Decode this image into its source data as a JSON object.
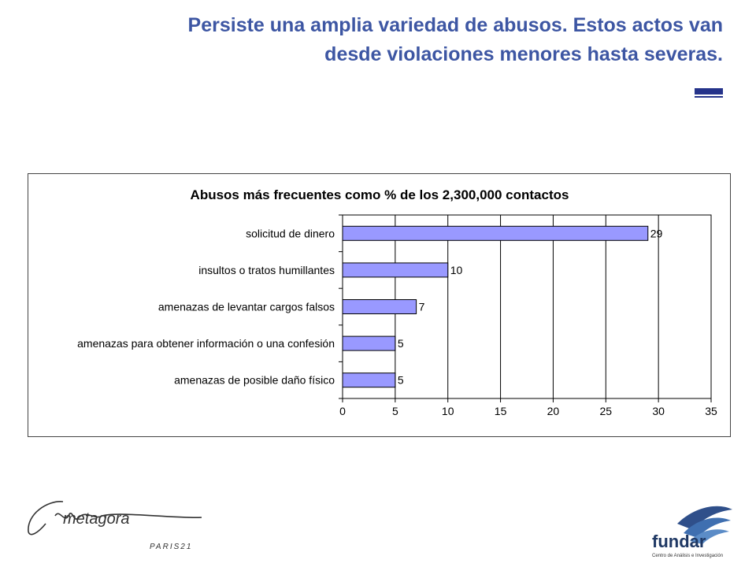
{
  "slide": {
    "title_line1": "Persiste una amplia variedad de abusos. Estos actos van",
    "title_line2": "desde violaciones menores hasta severas.",
    "title_color": "#3d56a3",
    "rule_color": "#25338a"
  },
  "chart_data": {
    "type": "bar",
    "orientation": "horizontal",
    "title": "Abusos más frecuentes como % de los 2,300,000 contactos",
    "categories": [
      "solicitud de dinero",
      "insultos o tratos humillantes",
      "amenazas de levantar cargos falsos",
      "amenazas para obtener información o una confesión",
      "amenazas de posible daño físico"
    ],
    "values": [
      29,
      10,
      7,
      5,
      5
    ],
    "data_labels": [
      "29",
      "10",
      "7",
      "5",
      "5"
    ],
    "xlim": [
      0,
      35
    ],
    "xticks": [
      "0",
      "5",
      "10",
      "15",
      "20",
      "25",
      "30",
      "35"
    ],
    "xlabel": "",
    "ylabel": "",
    "bar_color": "#9999ff",
    "grid": true,
    "legend": "none"
  },
  "logos": {
    "left_script": "metagora",
    "left_sub": "PARIS21",
    "right_name": "fundar",
    "right_sub": "Centro de Análisis e Investigación"
  }
}
